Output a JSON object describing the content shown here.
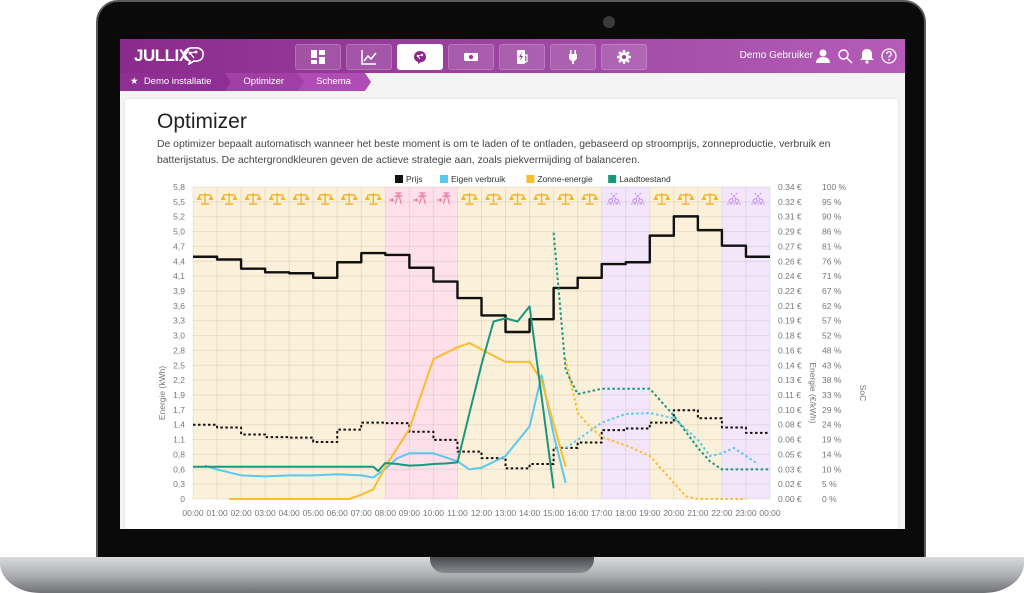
{
  "app": {
    "logo": "JULLIX",
    "nav": [
      {
        "name": "dashboard",
        "icon": "dashboard-icon",
        "active": false
      },
      {
        "name": "charts",
        "icon": "line-chart-icon",
        "active": false
      },
      {
        "name": "optimizer",
        "icon": "brain-icon",
        "active": true
      },
      {
        "name": "finance",
        "icon": "money-icon",
        "active": false
      },
      {
        "name": "charging",
        "icon": "ev-charger-icon",
        "active": false
      },
      {
        "name": "devices",
        "icon": "plug-icon",
        "active": false
      },
      {
        "name": "settings",
        "icon": "gear-icon",
        "active": false
      }
    ],
    "user_name": "Demo Gebruiker",
    "breadcrumb": [
      "Demo installatie",
      "Optimizer",
      "Schema"
    ]
  },
  "page": {
    "title": "Optimizer",
    "description": "De optimizer bepaalt automatisch wanneer het beste moment is om te laden of te ontladen, gebaseerd op stroomprijs, zonneproductie, verbruik en batterijstatus. De achtergrondkleuren geven de actieve strategie aan, zoals piekvermijding of balanceren."
  },
  "chart_data": {
    "type": "line",
    "title": "",
    "legend": [
      {
        "name": "Prijs",
        "color": "#111111"
      },
      {
        "name": "Eigen verbruik",
        "color": "#5bc8ef"
      },
      {
        "name": "Zonne-energie",
        "color": "#fbbd2e"
      },
      {
        "name": "Laadtoestand",
        "color": "#17987c"
      }
    ],
    "legend_position": "top",
    "x_ticks": [
      "00:00",
      "01:00",
      "02:00",
      "03:00",
      "04:00",
      "05:00",
      "06:00",
      "07:00",
      "08:00",
      "09:00",
      "10:00",
      "11:00",
      "12:00",
      "13:00",
      "14:00",
      "15:00",
      "16:00",
      "17:00",
      "18:00",
      "19:00",
      "20:00",
      "21:00",
      "22:00",
      "23:00",
      "00:00"
    ],
    "y_left": {
      "label": "Energie (kWh)",
      "ticks": [
        "0",
        "0,3",
        "0,6",
        "0,8",
        "1,1",
        "1,4",
        "1,7",
        "1,9",
        "2,2",
        "2,5",
        "2,8",
        "3,0",
        "3,3",
        "3,6",
        "3,9",
        "4,1",
        "4,4",
        "4,7",
        "5,0",
        "5,2",
        "5,5",
        "5,8"
      ],
      "range": [
        0,
        5.8
      ]
    },
    "y_right_price": {
      "label": "Energie (€/kWh)",
      "ticks": [
        "0.00 €",
        "0.02 €",
        "0.03 €",
        "0.05 €",
        "0.06 €",
        "0.08 €",
        "0.10 €",
        "0.11 €",
        "0.13 €",
        "0.14 €",
        "0.16 €",
        "0.18 €",
        "0.19 €",
        "0.21 €",
        "0.22 €",
        "0.24 €",
        "0.26 €",
        "0.27 €",
        "0.29 €",
        "0.31 €",
        "0.32 €",
        "0.34 €"
      ],
      "range": [
        0,
        0.34
      ]
    },
    "y_right_soc": {
      "label": "SoC",
      "ticks": [
        "0 %",
        "5 %",
        "10 %",
        "14 %",
        "19 %",
        "24 %",
        "29 %",
        "33 %",
        "38 %",
        "43 %",
        "48 %",
        "52 %",
        "57 %",
        "62 %",
        "67 %",
        "71 %",
        "76 %",
        "81 %",
        "86 %",
        "90 %",
        "95 %",
        "100 %"
      ],
      "range": [
        0,
        100
      ]
    },
    "grid": true,
    "strategy_bands": [
      {
        "from": 0,
        "to": 8,
        "strategy": "balanceren",
        "color": "#fbf0d9",
        "icon": "balance-scale-icon"
      },
      {
        "from": 8,
        "to": 11,
        "strategy": "piekvermijding",
        "color": "#fde0ea",
        "icon": "grid-tower-icon"
      },
      {
        "from": 11,
        "to": 17,
        "strategy": "balanceren",
        "color": "#fbf0d9",
        "icon": "balance-scale-icon"
      },
      {
        "from": 17,
        "to": 19,
        "strategy": "peak-shaving",
        "color": "#f3e6fb",
        "icon": "scissors-icon"
      },
      {
        "from": 19,
        "to": 22,
        "strategy": "balanceren",
        "color": "#fbf0d9",
        "icon": "balance-scale-icon"
      },
      {
        "from": 22,
        "to": 24,
        "strategy": "peak-shaving",
        "color": "#f3e6fb",
        "icon": "scissors-icon"
      }
    ],
    "series": [
      {
        "name": "Prijs (actueel)",
        "axis": "price",
        "style": "step-solid",
        "color": "#111111",
        "x": [
          0,
          1,
          2,
          3,
          4,
          5,
          6,
          7,
          8,
          9,
          10,
          11,
          12,
          13,
          14,
          15,
          16,
          17,
          18,
          19,
          20,
          21,
          22,
          23
        ],
        "values": [
          0.264,
          0.261,
          0.251,
          0.247,
          0.246,
          0.241,
          0.258,
          0.268,
          0.266,
          0.252,
          0.237,
          0.219,
          0.2,
          0.182,
          0.196,
          0.23,
          0.241,
          0.256,
          0.258,
          0.287,
          0.308,
          0.293,
          0.276,
          0.264
        ]
      },
      {
        "name": "Prijs (schaal kWh, gestippeld)",
        "axis": "energy",
        "style": "step-dotted",
        "color": "#111111",
        "x": [
          0,
          1,
          2,
          3,
          4,
          5,
          6,
          7,
          8,
          9,
          10,
          11,
          12,
          13,
          14,
          15,
          16,
          17,
          18,
          19,
          20,
          21,
          22,
          23
        ],
        "values": [
          1.38,
          1.33,
          1.2,
          1.15,
          1.14,
          1.06,
          1.29,
          1.42,
          1.41,
          1.25,
          1.1,
          0.88,
          0.76,
          0.57,
          0.65,
          0.95,
          1.05,
          1.28,
          1.31,
          1.42,
          1.65,
          1.5,
          1.33,
          1.23
        ]
      },
      {
        "name": "Eigen verbruik",
        "axis": "energy",
        "style": "solid",
        "color": "#5bc8ef",
        "x": [
          0.5,
          1,
          2,
          3,
          4,
          5,
          6,
          7,
          7.5,
          8,
          8.5,
          9,
          10,
          11,
          11.5,
          12,
          13,
          14,
          14.5,
          15,
          15.5
        ],
        "values": [
          0.62,
          0.55,
          0.44,
          0.42,
          0.44,
          0.44,
          0.46,
          0.44,
          0.4,
          0.56,
          0.76,
          0.85,
          0.85,
          0.7,
          0.55,
          0.58,
          0.8,
          1.35,
          2.3,
          1.2,
          0.3
        ]
      },
      {
        "name": "Eigen verbruik (prognose)",
        "axis": "energy",
        "style": "dotted",
        "color": "#5bc8ef",
        "x": [
          15.5,
          16,
          17,
          18,
          19,
          20,
          21,
          21.5,
          22,
          22.5,
          23,
          23.5
        ],
        "values": [
          0.95,
          1.1,
          1.42,
          1.58,
          1.6,
          1.5,
          1.1,
          0.8,
          0.85,
          0.95,
          0.8,
          0.65
        ]
      },
      {
        "name": "Zonne-energie",
        "axis": "energy",
        "style": "solid",
        "color": "#fbbd2e",
        "x": [
          1.5,
          2,
          3,
          4,
          5,
          6,
          6.5,
          7,
          7.5,
          8,
          9,
          10,
          11,
          11.5,
          12,
          13,
          14,
          14.5,
          15,
          15.5
        ],
        "values": [
          0,
          0,
          0,
          0,
          0,
          0,
          0,
          0.08,
          0.18,
          0.6,
          1.3,
          2.6,
          2.82,
          2.9,
          2.78,
          2.55,
          2.55,
          2.2,
          1.4,
          0.6
        ]
      },
      {
        "name": "Zonne-energie (prognose)",
        "axis": "energy",
        "style": "dotted",
        "color": "#fbbd2e",
        "x": [
          15.5,
          16,
          16.5,
          17,
          18,
          19,
          19.5,
          20,
          20.5,
          21,
          22,
          23
        ],
        "values": [
          2.6,
          1.6,
          1.35,
          1.15,
          1.0,
          0.8,
          0.55,
          0.3,
          0.05,
          0.0,
          0.0,
          0.0
        ]
      },
      {
        "name": "Laadtoestand",
        "axis": "energy",
        "style": "solid",
        "color": "#17987c",
        "x": [
          0,
          1,
          2,
          3,
          4,
          5,
          6,
          7,
          7.5,
          7.7,
          8,
          8.5,
          9,
          9.5,
          10,
          10.5,
          11,
          11.5,
          12,
          12.5,
          13,
          13.5,
          14,
          14.5,
          15
        ],
        "values": [
          0.6,
          0.6,
          0.6,
          0.6,
          0.6,
          0.6,
          0.6,
          0.6,
          0.6,
          0.52,
          0.67,
          0.65,
          0.62,
          0.63,
          0.65,
          0.66,
          0.68,
          1.6,
          2.5,
          3.3,
          3.36,
          3.3,
          3.58,
          1.9,
          0.2
        ]
      },
      {
        "name": "Laadtoestand (prognose)",
        "axis": "energy",
        "style": "dotted",
        "color": "#17987c",
        "x": [
          15,
          15.5,
          16,
          17,
          18,
          19,
          19.5,
          20,
          20.5,
          21,
          21.5,
          22,
          23,
          24
        ],
        "values": [
          4.95,
          2.4,
          1.95,
          2.05,
          2.05,
          2.05,
          1.8,
          1.55,
          1.25,
          0.95,
          0.7,
          0.55,
          0.55,
          0.55
        ]
      }
    ]
  }
}
